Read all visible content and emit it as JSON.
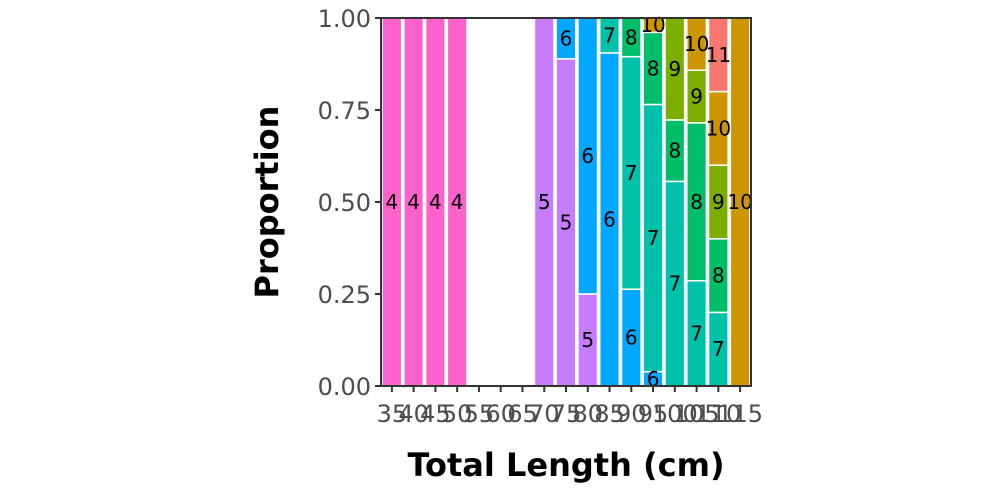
{
  "chart_data": {
    "type": "bar",
    "stacked": "proportion",
    "xlabel": "Total Length (cm)",
    "ylabel": "Proportion",
    "ylim": [
      0,
      1
    ],
    "y_ticks": [
      "0.00",
      "0.25",
      "0.50",
      "0.75",
      "1.00"
    ],
    "categories": [
      "35",
      "40",
      "45",
      "50",
      "55",
      "60",
      "65",
      "70",
      "75",
      "80",
      "85",
      "90",
      "95",
      "100",
      "105",
      "110",
      "115"
    ],
    "group_colors": {
      "4": "#FF61CC",
      "5": "#C77CFF",
      "6": "#00A9FF",
      "7": "#00C1AA",
      "8": "#00BE67",
      "9": "#7CAE00",
      "10": "#CD9600",
      "11": "#F8766D"
    },
    "bars": [
      {
        "x": "35",
        "segments": [
          {
            "group": "4",
            "value": 1.0
          }
        ]
      },
      {
        "x": "40",
        "segments": [
          {
            "group": "4",
            "value": 1.0
          }
        ]
      },
      {
        "x": "45",
        "segments": [
          {
            "group": "4",
            "value": 1.0
          }
        ]
      },
      {
        "x": "50",
        "segments": [
          {
            "group": "4",
            "value": 1.0
          }
        ]
      },
      {
        "x": "55",
        "segments": []
      },
      {
        "x": "60",
        "segments": []
      },
      {
        "x": "65",
        "segments": []
      },
      {
        "x": "70",
        "segments": [
          {
            "group": "5",
            "value": 1.0
          }
        ]
      },
      {
        "x": "75",
        "segments": [
          {
            "group": "5",
            "value": 0.889
          },
          {
            "group": "6",
            "value": 0.111
          }
        ]
      },
      {
        "x": "80",
        "segments": [
          {
            "group": "5",
            "value": 0.25
          },
          {
            "group": "6",
            "value": 0.75
          }
        ]
      },
      {
        "x": "85",
        "segments": [
          {
            "group": "6",
            "value": 0.905
          },
          {
            "group": "7",
            "value": 0.095
          }
        ]
      },
      {
        "x": "90",
        "segments": [
          {
            "group": "6",
            "value": 0.263
          },
          {
            "group": "7",
            "value": 0.632
          },
          {
            "group": "8",
            "value": 0.105
          }
        ]
      },
      {
        "x": "95",
        "segments": [
          {
            "group": "6",
            "value": 0.039
          },
          {
            "group": "7",
            "value": 0.726
          },
          {
            "group": "8",
            "value": 0.196
          },
          {
            "group": "10",
            "value": 0.039
          }
        ]
      },
      {
        "x": "100",
        "segments": [
          {
            "group": "7",
            "value": 0.556
          },
          {
            "group": "8",
            "value": 0.167
          },
          {
            "group": "9",
            "value": 0.278
          }
        ]
      },
      {
        "x": "105",
        "segments": [
          {
            "group": "7",
            "value": 0.286
          },
          {
            "group": "8",
            "value": 0.429
          },
          {
            "group": "9",
            "value": 0.143
          },
          {
            "group": "10",
            "value": 0.143
          }
        ]
      },
      {
        "x": "110",
        "segments": [
          {
            "group": "7",
            "value": 0.2
          },
          {
            "group": "8",
            "value": 0.2
          },
          {
            "group": "9",
            "value": 0.2
          },
          {
            "group": "10",
            "value": 0.2
          },
          {
            "group": "11",
            "value": 0.2
          }
        ]
      },
      {
        "x": "115",
        "segments": [
          {
            "group": "10",
            "value": 1.0
          }
        ]
      }
    ]
  }
}
